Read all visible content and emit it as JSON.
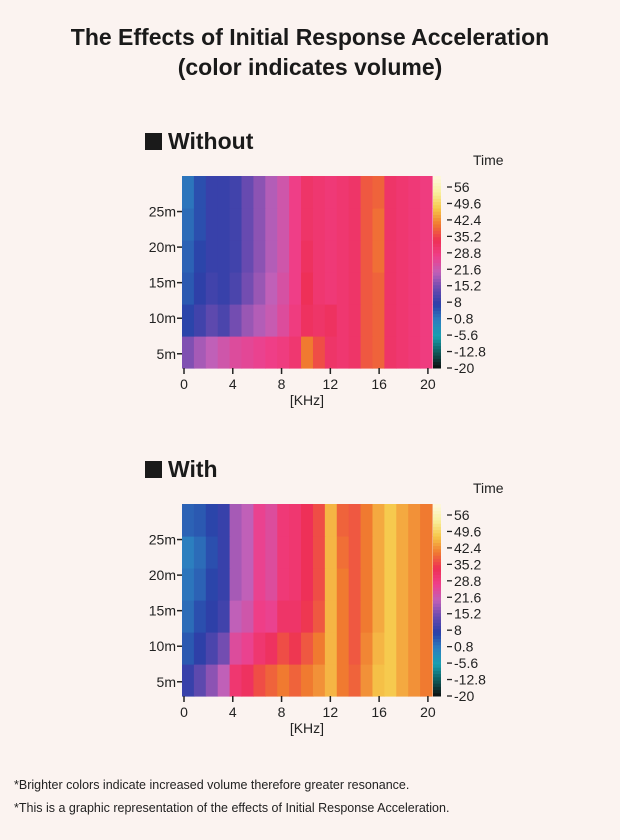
{
  "title_line1": "The Effects of Initial Response Acceleration",
  "title_line2": "(color indicates volume)",
  "footnotes": [
    "*Brighter colors indicate increased volume therefore greater resonance.",
    "*This is a graphic representation of the effects of Initial Response Acceleration."
  ],
  "chart_data": [
    {
      "type": "heatmap",
      "title": "Without",
      "xlabel": "[KHz]",
      "ylabel": "Time",
      "xlim": [
        0,
        20.5
      ],
      "ylim": [
        3,
        30
      ],
      "xticks": [
        "0",
        "4",
        "8",
        "12",
        "16",
        "20"
      ],
      "xtick_values": [
        0,
        4,
        8,
        12,
        16,
        20
      ],
      "yticks": [
        "5m",
        "10m",
        "15m",
        "20m",
        "25m"
      ],
      "ytick_values": [
        5,
        10,
        15,
        20,
        25
      ],
      "colorbar_ticks": [
        "56",
        "49.6",
        "42.4",
        "35.2",
        "28.8",
        "21.6",
        "15.2",
        "8",
        "0.8",
        "-5.6",
        "-12.8",
        "-20"
      ],
      "colorbar_range": [
        -20,
        60
      ],
      "freq_bins_khz": [
        0,
        1,
        2,
        3,
        4,
        5,
        6,
        7,
        8,
        9,
        10,
        11,
        12,
        13,
        14,
        15,
        16,
        17,
        18,
        19,
        20
      ],
      "time_bins_min": [
        3,
        7.5,
        12,
        16.5,
        21,
        25.5
      ],
      "values": [
        [
          15,
          18,
          20,
          22,
          24,
          25,
          26,
          27,
          28,
          30,
          40,
          36,
          31,
          30,
          31,
          37,
          38,
          31,
          30,
          29,
          28
        ],
        [
          6,
          9,
          12,
          10,
          14,
          17,
          19,
          21,
          24,
          28,
          32,
          31,
          32,
          30,
          31,
          37,
          38,
          31,
          30,
          29,
          28
        ],
        [
          4,
          7,
          9,
          8,
          10,
          14,
          17,
          20,
          23,
          27,
          33,
          30,
          29,
          30,
          31,
          37,
          38,
          31,
          30,
          29,
          28
        ],
        [
          3,
          6,
          8,
          8,
          9,
          13,
          16,
          19,
          22,
          27,
          32,
          30,
          29,
          30,
          31,
          37,
          39,
          31,
          30,
          29,
          28
        ],
        [
          2,
          5,
          8,
          8,
          9,
          13,
          16,
          19,
          22,
          27,
          31,
          30,
          29,
          30,
          31,
          37,
          39,
          31,
          30,
          29,
          28
        ],
        [
          1,
          5,
          8,
          8,
          9,
          13,
          16,
          19,
          22,
          27,
          31,
          30,
          29,
          30,
          31,
          37,
          38,
          31,
          30,
          29,
          28
        ]
      ]
    },
    {
      "type": "heatmap",
      "title": "With",
      "xlabel": "[KHz]",
      "ylabel": "Time",
      "xlim": [
        0,
        20.5
      ],
      "ylim": [
        3,
        30
      ],
      "xticks": [
        "0",
        "4",
        "8",
        "12",
        "16",
        "20"
      ],
      "xtick_values": [
        0,
        4,
        8,
        12,
        16,
        20
      ],
      "yticks": [
        "5m",
        "10m",
        "15m",
        "20m",
        "25m"
      ],
      "ytick_values": [
        5,
        10,
        15,
        20,
        25
      ],
      "colorbar_ticks": [
        "56",
        "49.6",
        "42.4",
        "35.2",
        "28.8",
        "21.6",
        "15.2",
        "8",
        "0.8",
        "-5.6",
        "-12.8",
        "-20"
      ],
      "colorbar_range": [
        -20,
        60
      ],
      "freq_bins_khz": [
        0,
        1,
        2,
        3,
        4,
        5,
        6,
        7,
        8,
        9,
        10,
        11,
        12,
        13,
        14,
        15,
        16,
        17,
        18,
        19,
        20
      ],
      "time_bins_min": [
        3,
        7.5,
        12,
        16.5,
        21,
        25.5
      ],
      "values": [
        [
          8,
          12,
          16,
          20,
          30,
          32,
          36,
          38,
          40,
          38,
          40,
          42,
          45,
          40,
          38,
          42,
          46,
          47,
          44,
          42,
          40
        ],
        [
          4,
          7,
          10,
          14,
          24,
          26,
          30,
          32,
          36,
          34,
          37,
          40,
          45,
          40,
          37,
          41,
          45,
          47,
          44,
          42,
          40
        ],
        [
          2,
          5,
          7,
          9,
          20,
          22,
          27,
          26,
          31,
          31,
          34,
          37,
          45,
          40,
          37,
          40,
          44,
          47,
          44,
          42,
          40
        ],
        [
          1,
          3,
          6,
          8,
          18,
          20,
          26,
          24,
          29,
          30,
          33,
          36,
          45,
          40,
          37,
          40,
          44,
          47,
          44,
          42,
          40
        ],
        [
          0,
          2,
          5,
          8,
          18,
          20,
          26,
          24,
          29,
          30,
          33,
          36,
          45,
          39,
          37,
          40,
          44,
          47,
          44,
          42,
          40
        ],
        [
          3,
          4,
          6,
          8,
          18,
          20,
          26,
          24,
          29,
          30,
          33,
          36,
          45,
          38,
          37,
          40,
          44,
          47,
          44,
          42,
          40
        ]
      ]
    }
  ],
  "colors": {
    "background": "#fbf3f0",
    "colormap": [
      "#0d0d0d",
      "#0f5a5a",
      "#1aa0b0",
      "#2c7fbf",
      "#2b3fa8",
      "#6a4bb0",
      "#c060b8",
      "#ef3f8a",
      "#ee2f55",
      "#f07a30",
      "#f6c84a",
      "#f8f0a0",
      "#fdf8e0"
    ]
  }
}
